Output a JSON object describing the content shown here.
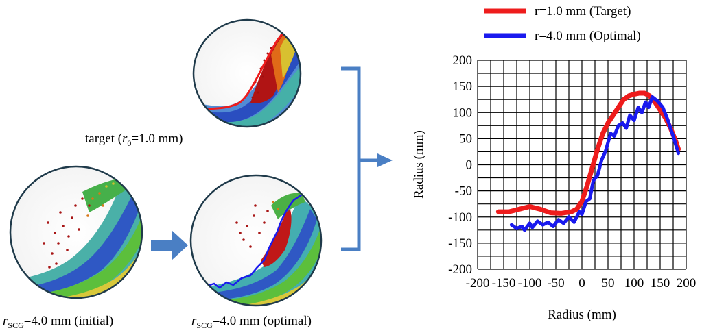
{
  "panels": {
    "target": {
      "prefix": "target (",
      "var": "r",
      "sub": "0",
      "suffix": "=1.0 mm)"
    },
    "initial": {
      "var": "r",
      "sub": "SCG",
      "suffix": "=4.0 mm (initial)"
    },
    "optimal": {
      "var": "r",
      "sub": "SCG",
      "suffix": "=4.0 mm (optimal)"
    }
  },
  "colors": {
    "target_line": "#ee1c1c",
    "optimal_line": "#1a1aee",
    "arrow": "#4a7fc4",
    "circle_border": "#1f3a4a",
    "particle_red": "#b01010",
    "particle_orange": "#e07010",
    "particle_yellow": "#d8d020",
    "particle_green": "#50b030",
    "particle_cyan": "#30b0b0",
    "particle_blue": "#2050c0"
  },
  "chart_data": {
    "type": "line",
    "title": "",
    "xlabel": "Radius (mm)",
    "ylabel": "Radius (mm)",
    "xlim": [
      -200,
      200
    ],
    "ylim": [
      -200,
      200
    ],
    "xticks": [
      -200,
      -150,
      -100,
      -50,
      0,
      50,
      100,
      150,
      200
    ],
    "xtick_labels": [
      "-200",
      "-150",
      "-100",
      "-50",
      "0",
      "50",
      "100",
      "150",
      "200"
    ],
    "yticks": [
      200,
      150,
      100,
      50,
      0,
      -50,
      -100,
      -150,
      -200
    ],
    "ytick_labels": [
      "200",
      "150",
      "100",
      "50",
      "0",
      "-50",
      "-100",
      "-150",
      "-200"
    ],
    "grid": true,
    "legend_position": "top",
    "series": [
      {
        "name": "r=1.0 mm (Target)",
        "color": "#ee1c1c",
        "x": [
          -160,
          -140,
          -120,
          -100,
          -80,
          -60,
          -40,
          -20,
          -10,
          0,
          10,
          20,
          30,
          40,
          50,
          60,
          70,
          80,
          90,
          100,
          110,
          120,
          130,
          140,
          150,
          160,
          170,
          180,
          185
        ],
        "y": [
          -90,
          -90,
          -85,
          -80,
          -85,
          -92,
          -93,
          -90,
          -85,
          -70,
          -40,
          -5,
          30,
          60,
          80,
          95,
          110,
          125,
          132,
          135,
          137,
          137,
          132,
          120,
          105,
          90,
          70,
          45,
          30
        ]
      },
      {
        "name": "r=4.0 mm (Optimal)",
        "color": "#1a1aee",
        "x": [
          -135,
          -125,
          -115,
          -110,
          -100,
          -95,
          -85,
          -75,
          -65,
          -55,
          -45,
          -35,
          -25,
          -15,
          -5,
          0,
          8,
          15,
          22,
          30,
          38,
          45,
          55,
          62,
          70,
          78,
          85,
          92,
          100,
          108,
          115,
          122,
          128,
          135,
          145,
          155,
          165,
          175,
          185
        ],
        "y": [
          -115,
          -122,
          -118,
          -125,
          -112,
          -120,
          -108,
          -115,
          -110,
          -118,
          -105,
          -112,
          -100,
          -110,
          -90,
          -95,
          -70,
          -65,
          -30,
          -20,
          10,
          25,
          60,
          55,
          75,
          80,
          70,
          95,
          85,
          110,
          100,
          120,
          110,
          130,
          122,
          110,
          85,
          55,
          22
        ]
      }
    ]
  }
}
